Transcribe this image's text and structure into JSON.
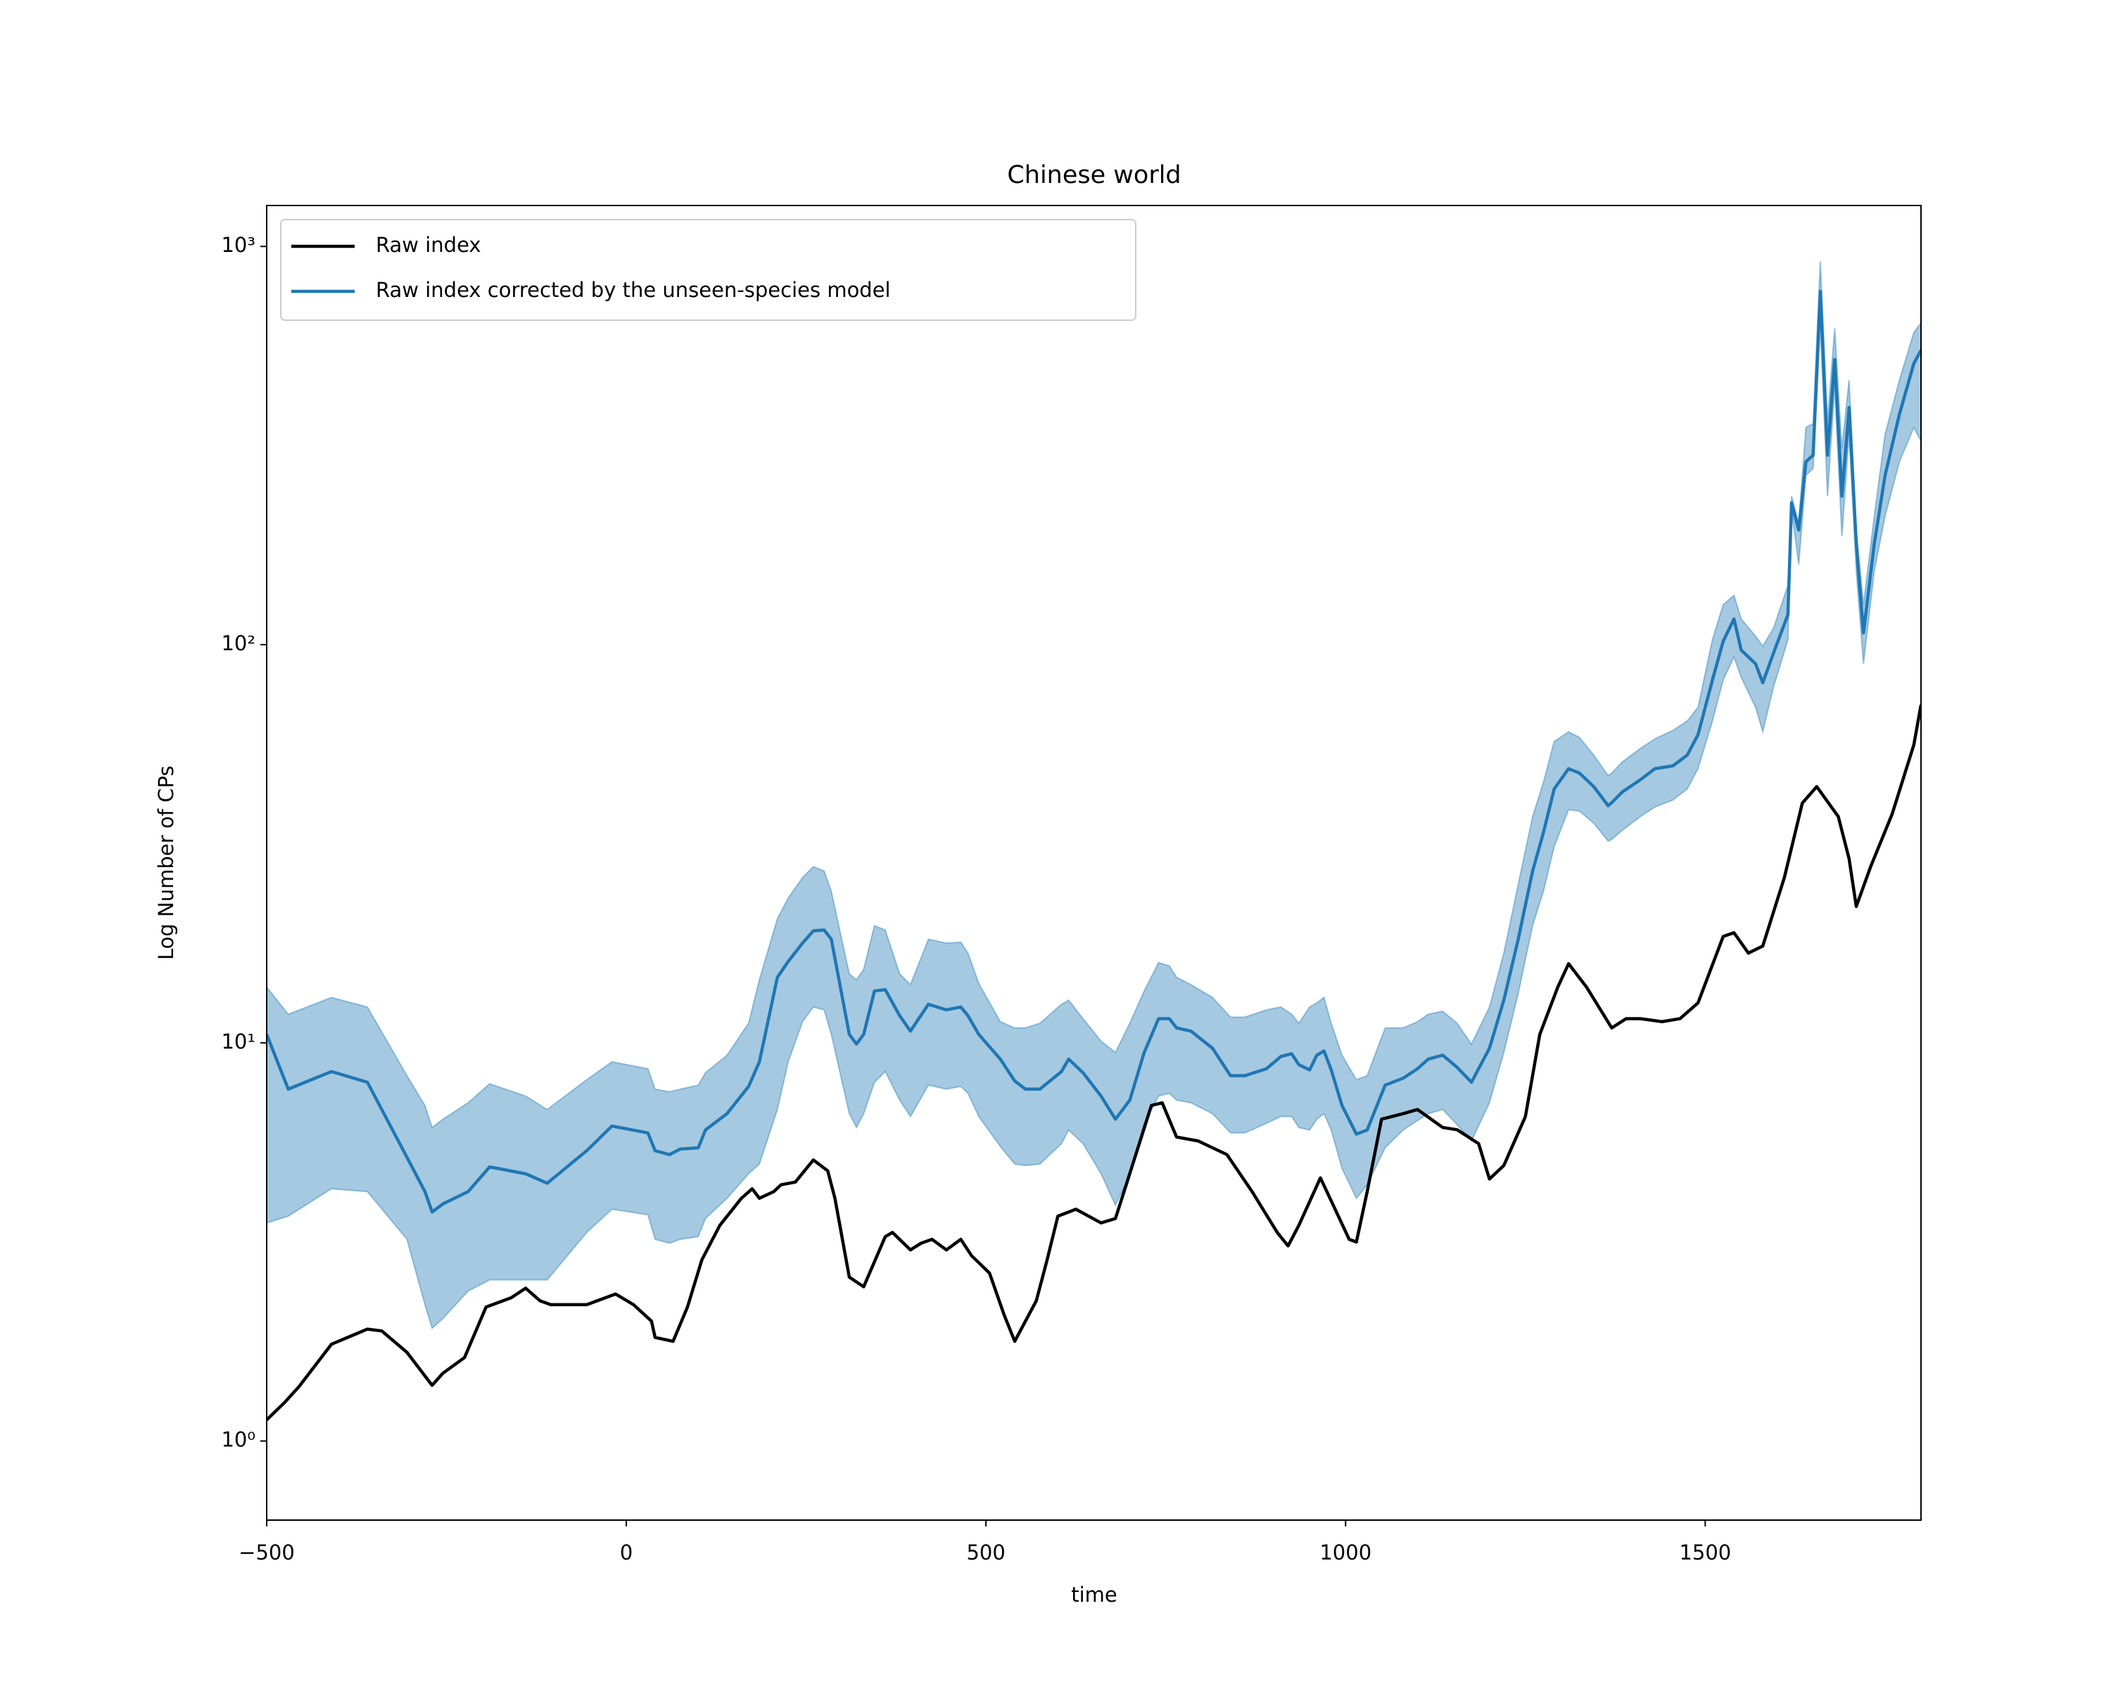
{
  "chart_data": {
    "type": "line",
    "title": "Chinese world",
    "xlabel": "time",
    "ylabel": "Log Number of CPs",
    "yscale": "log",
    "legend": "upper left",
    "band_opacity": 0.4,
    "xlim": [
      -500,
      1800
    ],
    "xticks": [
      {
        "value": -500,
        "label": "−500"
      },
      0,
      500,
      1000,
      1500
    ],
    "ylim": [
      0.633,
      1267
    ],
    "yticks": [
      {
        "value": 1,
        "label": "10⁰"
      },
      {
        "value": 10,
        "label": "10¹"
      },
      {
        "value": 100,
        "label": "10²"
      },
      {
        "value": 1000,
        "label": "10³"
      }
    ],
    "series": [
      {
        "name": "Raw index",
        "color": "#000000",
        "x": [
          -500,
          -475,
          -455,
          -410,
          -360,
          -340,
          -305,
          -270,
          -255,
          -225,
          -195,
          -160,
          -140,
          -120,
          -105,
          -55,
          -15,
          10,
          35,
          40,
          65,
          85,
          105,
          130,
          160,
          175,
          185,
          205,
          215,
          235,
          260,
          280,
          290,
          310,
          330,
          360,
          370,
          395,
          410,
          425,
          445,
          465,
          480,
          505,
          525,
          540,
          570,
          585,
          600,
          625,
          660,
          680,
          695,
          730,
          745,
          765,
          795,
          835,
          870,
          905,
          920,
          935,
          965,
          1005,
          1015,
          1030,
          1050,
          1080,
          1100,
          1135,
          1155,
          1185,
          1200,
          1220,
          1250,
          1270,
          1295,
          1310,
          1335,
          1370,
          1390,
          1410,
          1440,
          1465,
          1490,
          1525,
          1540,
          1560,
          1580,
          1610,
          1635,
          1655,
          1685,
          1700,
          1710,
          1730,
          1760,
          1790,
          1800
        ],
        "values": [
          1.13,
          1.25,
          1.37,
          1.75,
          1.91,
          1.89,
          1.67,
          1.38,
          1.48,
          1.62,
          2.17,
          2.29,
          2.42,
          2.25,
          2.2,
          2.2,
          2.34,
          2.2,
          2.0,
          1.82,
          1.78,
          2.17,
          2.85,
          3.48,
          4.07,
          4.3,
          4.07,
          4.23,
          4.4,
          4.47,
          5.08,
          4.77,
          4.07,
          2.58,
          2.44,
          3.26,
          3.34,
          3.02,
          3.14,
          3.21,
          3.02,
          3.21,
          2.92,
          2.64,
          2.08,
          1.78,
          2.25,
          2.85,
          3.67,
          3.82,
          3.53,
          3.62,
          4.4,
          6.96,
          7.07,
          5.8,
          5.67,
          5.24,
          4.23,
          3.34,
          3.09,
          3.48,
          4.58,
          3.21,
          3.16,
          4.23,
          6.43,
          6.64,
          6.8,
          6.13,
          6.05,
          5.58,
          4.55,
          4.92,
          6.53,
          10.5,
          13.8,
          15.8,
          13.8,
          10.9,
          11.5,
          11.5,
          11.3,
          11.5,
          12.6,
          18.5,
          18.9,
          16.8,
          17.5,
          26,
          40,
          44,
          37,
          29,
          22,
          27.7,
          37.6,
          56,
          70.6
        ]
      },
      {
        "name": "Raw index corrected by the unseen-species model",
        "color": "#1f77b4",
        "x": [
          -500,
          -470,
          -410,
          -360,
          -305,
          -280,
          -270,
          -255,
          -220,
          -190,
          -140,
          -110,
          -55,
          -20,
          30,
          40,
          60,
          75,
          100,
          110,
          140,
          170,
          185,
          210,
          225,
          245,
          260,
          275,
          285,
          310,
          320,
          330,
          345,
          360,
          380,
          395,
          420,
          445,
          465,
          475,
          490,
          520,
          540,
          555,
          575,
          605,
          615,
          635,
          660,
          680,
          700,
          720,
          740,
          755,
          765,
          785,
          815,
          840,
          860,
          890,
          910,
          925,
          935,
          950,
          960,
          970,
          980,
          995,
          1015,
          1030,
          1055,
          1080,
          1100,
          1115,
          1135,
          1155,
          1175,
          1200,
          1220,
          1240,
          1260,
          1275,
          1290,
          1310,
          1325,
          1345,
          1365,
          1370,
          1385,
          1410,
          1430,
          1455,
          1475,
          1490,
          1510,
          1525,
          1540,
          1550,
          1570,
          1580,
          1595,
          1615,
          1620,
          1630,
          1640,
          1650,
          1660,
          1670,
          1680,
          1690,
          1700,
          1710,
          1720,
          1735,
          1750,
          1770,
          1790,
          1800
        ],
        "values": [
          10.5,
          7.65,
          8.47,
          7.96,
          5.16,
          4.23,
          3.76,
          3.94,
          4.23,
          4.88,
          4.69,
          4.44,
          5.36,
          6.18,
          5.94,
          5.36,
          5.24,
          5.41,
          5.45,
          6.04,
          6.64,
          7.77,
          8.96,
          14.6,
          16.0,
          17.8,
          19.1,
          19.2,
          18.2,
          10.5,
          9.93,
          10.5,
          13.5,
          13.6,
          11.7,
          10.7,
          12.5,
          12.1,
          12.3,
          11.7,
          10.5,
          9.1,
          8.02,
          7.65,
          7.65,
          8.47,
          9.1,
          8.41,
          7.35,
          6.43,
          7.18,
          9.46,
          11.5,
          11.5,
          10.9,
          10.7,
          9.69,
          8.27,
          8.27,
          8.61,
          9.24,
          9.39,
          8.81,
          8.55,
          9.31,
          9.54,
          8.55,
          6.96,
          5.9,
          6.04,
          7.83,
          8.15,
          8.61,
          9.1,
          9.31,
          8.68,
          7.96,
          9.69,
          12.8,
          18.2,
          27.0,
          33.7,
          43.4,
          48.8,
          47.6,
          44.0,
          39.4,
          40.1,
          42.7,
          45.8,
          48.8,
          49.6,
          52.8,
          59.4,
          81.5,
          102,
          116,
          96.9,
          89.5,
          80.2,
          95.3,
          119,
          227,
          194,
          288,
          299,
          771,
          299,
          520,
          236,
          394,
          179,
          107,
          179,
          266,
          379,
          508,
          549
        ],
        "upper": [
          13.8,
          11.8,
          13.0,
          12.3,
          8.27,
          6.96,
          6.13,
          6.43,
          7.07,
          7.89,
          7.35,
          6.8,
          8.08,
          8.96,
          8.61,
          7.65,
          7.53,
          7.65,
          7.83,
          8.41,
          9.31,
          11.2,
          14.4,
          20.5,
          23.1,
          26.0,
          27.7,
          27.0,
          24.0,
          14.9,
          14.4,
          15.3,
          19.7,
          19.2,
          14.9,
          14.0,
          18.2,
          17.8,
          17.9,
          16.8,
          14.1,
          11.3,
          10.9,
          10.9,
          11.2,
          12.5,
          12.8,
          11.5,
          10.1,
          9.46,
          11.2,
          13.5,
          15.9,
          15.6,
          14.6,
          14.0,
          13.0,
          11.6,
          11.6,
          12.1,
          12.3,
          11.8,
          11.2,
          12.3,
          12.6,
          13.0,
          11.2,
          9.31,
          8.08,
          8.27,
          10.9,
          10.9,
          11.3,
          11.8,
          12.0,
          11.2,
          9.93,
          12.3,
          16.8,
          25.0,
          37.0,
          45.1,
          57.1,
          60.4,
          58.5,
          52.8,
          46.9,
          47.6,
          50.8,
          54.9,
          58.0,
          60.9,
          64.3,
          69.6,
          103,
          126,
          133,
          116,
          105,
          99.2,
          110,
          141,
          236,
          202,
          351,
          359,
          917,
          364,
          623,
          311,
          462,
          194,
          126,
          210,
          337,
          462,
          608,
          643
        ],
        "lower": [
          3.53,
          3.67,
          4.3,
          4.23,
          3.21,
          2.2,
          1.92,
          2.03,
          2.38,
          2.54,
          2.54,
          2.54,
          3.34,
          3.82,
          3.7,
          3.21,
          3.14,
          3.21,
          3.26,
          3.62,
          4.07,
          4.69,
          4.96,
          6.8,
          8.96,
          11.3,
          12.3,
          12.1,
          10.5,
          6.64,
          6.13,
          6.64,
          7.96,
          8.47,
          7.18,
          6.53,
          7.83,
          7.65,
          7.77,
          7.47,
          6.53,
          5.49,
          4.96,
          4.92,
          4.96,
          5.58,
          6.04,
          5.58,
          4.69,
          3.91,
          4.65,
          6.28,
          7.35,
          7.47,
          7.18,
          7.07,
          6.64,
          5.94,
          5.94,
          6.28,
          6.53,
          6.53,
          6.13,
          6.04,
          6.43,
          6.64,
          6.04,
          4.84,
          4.07,
          4.4,
          5.45,
          6.04,
          6.38,
          6.64,
          6.8,
          6.23,
          5.67,
          7.07,
          9.46,
          13.3,
          19.7,
          24.0,
          31.1,
          38.5,
          38.2,
          35.6,
          32.1,
          32.4,
          34.2,
          37.0,
          39.1,
          40.7,
          43.4,
          48.8,
          64.3,
          81.5,
          93.1,
          82.7,
          69.6,
          60.4,
          78.3,
          103,
          218,
          159,
          266,
          277,
          633,
          236,
          444,
          187,
          337,
          153,
          89.5,
          153,
          210,
          288,
          351,
          324
        ]
      }
    ]
  }
}
